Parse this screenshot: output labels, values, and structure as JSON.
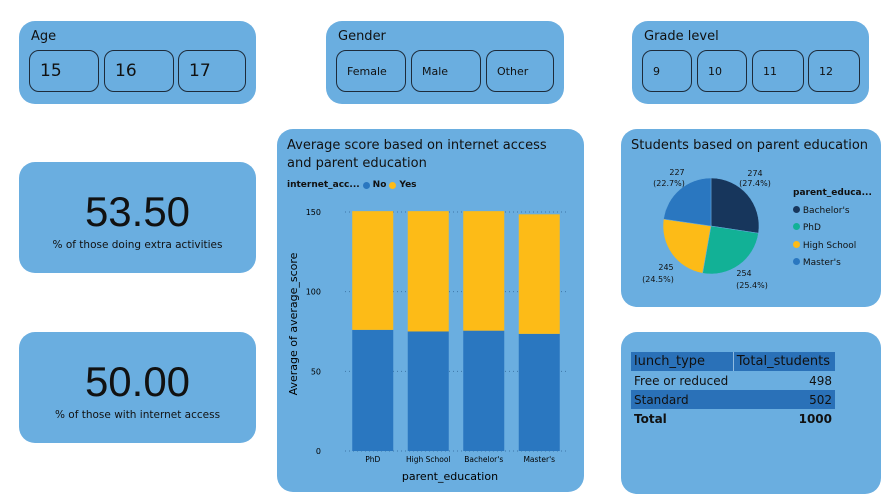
{
  "slicers": {
    "age": {
      "title": "Age",
      "options": [
        "15",
        "16",
        "17"
      ]
    },
    "gender": {
      "title": "Gender",
      "options": [
        "Female",
        "Male",
        "Other"
      ]
    },
    "grade": {
      "title": "Grade level",
      "options": [
        "9",
        "10",
        "11",
        "12"
      ]
    }
  },
  "kpis": [
    {
      "value": "53.50",
      "label": "% of those doing extra activities"
    },
    {
      "value": "50.00",
      "label": "% of those with internet access"
    }
  ],
  "bar_chart": {
    "title": "Average score based on internet access and parent education",
    "legend_title": "internet_acc...",
    "legend": [
      "No",
      "Yes"
    ],
    "xlabel": "parent_education",
    "ylabel": "Average of average_score",
    "yticks": [
      "0",
      "50",
      "100",
      "150"
    ]
  },
  "pie_chart": {
    "title": "Students based on parent education",
    "legend_title": "parent_educa...",
    "labels": [
      {
        "count": "274",
        "pct": "(27.4%)"
      },
      {
        "count": "254",
        "pct": "(25.4%)"
      },
      {
        "count": "245",
        "pct": "(24.5%)"
      },
      {
        "count": "227",
        "pct": "(22.7%)"
      }
    ]
  },
  "lunch_table": {
    "headers": [
      "lunch_type",
      "Total_students"
    ],
    "rows": [
      [
        "Free or reduced",
        "498"
      ],
      [
        "Standard",
        "502"
      ]
    ],
    "total": [
      "Total",
      "1000"
    ]
  },
  "chart_data": [
    {
      "type": "bar",
      "stacked": true,
      "title": "Average score based on internet access and parent education",
      "categories": [
        "PhD",
        "High School",
        "Bachelor's",
        "Master's"
      ],
      "series": [
        {
          "name": "No",
          "values": [
            76,
            75,
            75.5,
            73.5
          ]
        },
        {
          "name": "Yes",
          "values": [
            74.5,
            75.5,
            75,
            75
          ]
        }
      ],
      "xlabel": "parent_education",
      "ylabel": "Average of average_score",
      "ylim": [
        0,
        160
      ],
      "colors": [
        "#2a77c0",
        "#fdbb17"
      ]
    },
    {
      "type": "pie",
      "title": "Students based on parent education",
      "labels": [
        "Bachelor's",
        "PhD",
        "High School",
        "Master's"
      ],
      "values": [
        274,
        254,
        245,
        227
      ],
      "colors": [
        "#17365c",
        "#12b196",
        "#fdbb17",
        "#2a77c0"
      ]
    }
  ]
}
